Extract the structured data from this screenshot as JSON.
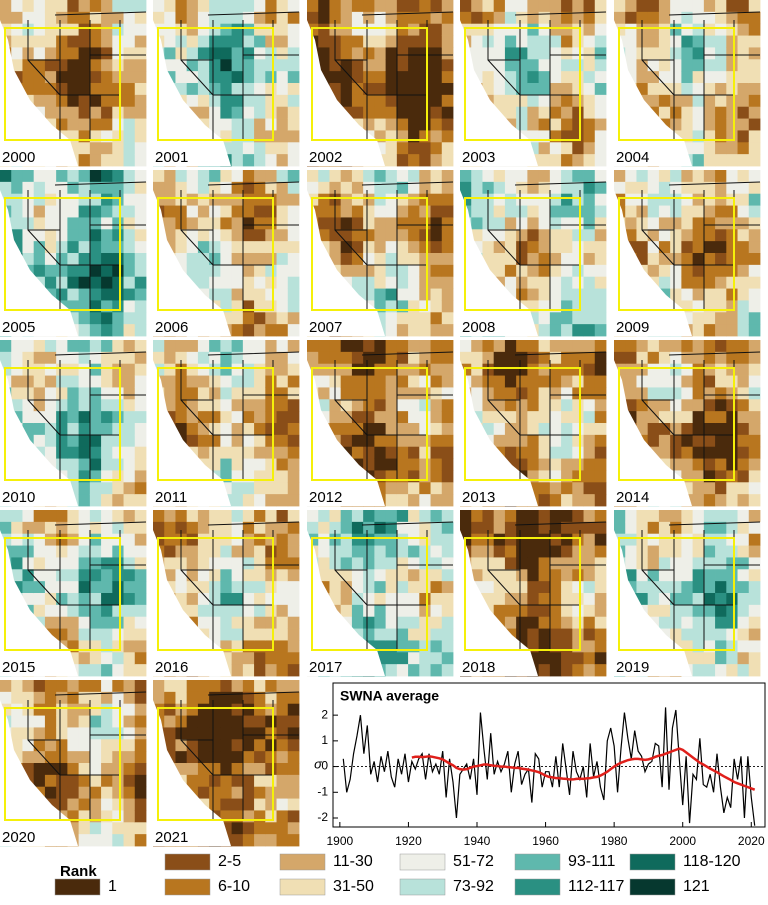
{
  "panels": [
    "2000",
    "2001",
    "2002",
    "2003",
    "2004",
    "2005",
    "2006",
    "2007",
    "2008",
    "2009",
    "2010",
    "2011",
    "2012",
    "2013",
    "2014",
    "2015",
    "2016",
    "2017",
    "2018",
    "2019",
    "2020",
    "2021"
  ],
  "legend": {
    "title": "Rank",
    "items": [
      {
        "label": "1",
        "color": "#4a2a0c"
      },
      {
        "label": "2-5",
        "color": "#8a4e18"
      },
      {
        "label": "6-10",
        "color": "#b8761f"
      },
      {
        "label": "11-30",
        "color": "#d4a76a"
      },
      {
        "label": "31-50",
        "color": "#f0dfb4"
      },
      {
        "label": "51-72",
        "color": "#eeefe8"
      },
      {
        "label": "73-92",
        "color": "#b8e2da"
      },
      {
        "label": "93-111",
        "color": "#5fb8ad"
      },
      {
        "label": "112-117",
        "color": "#2a9082"
      },
      {
        "label": "118-120",
        "color": "#0f6a5c"
      },
      {
        "label": "121",
        "color": "#06382f"
      }
    ]
  },
  "chart_data": {
    "type": "line",
    "title": "SWNA average",
    "y_label": "σ",
    "x": [
      1901,
      1902,
      1903,
      1904,
      1905,
      1906,
      1907,
      1908,
      1909,
      1910,
      1911,
      1912,
      1913,
      1914,
      1915,
      1916,
      1917,
      1918,
      1919,
      1920,
      1921,
      1922,
      1923,
      1924,
      1925,
      1926,
      1927,
      1928,
      1929,
      1930,
      1931,
      1932,
      1933,
      1934,
      1935,
      1936,
      1937,
      1938,
      1939,
      1940,
      1941,
      1942,
      1943,
      1944,
      1945,
      1946,
      1947,
      1948,
      1949,
      1950,
      1951,
      1952,
      1953,
      1954,
      1955,
      1956,
      1957,
      1958,
      1959,
      1960,
      1961,
      1962,
      1963,
      1964,
      1965,
      1966,
      1967,
      1968,
      1969,
      1970,
      1971,
      1972,
      1973,
      1974,
      1975,
      1976,
      1977,
      1978,
      1979,
      1980,
      1981,
      1982,
      1983,
      1984,
      1985,
      1986,
      1987,
      1988,
      1989,
      1990,
      1991,
      1992,
      1993,
      1994,
      1995,
      1996,
      1997,
      1998,
      1999,
      2000,
      2001,
      2002,
      2003,
      2004,
      2005,
      2006,
      2007,
      2008,
      2009,
      2010,
      2011,
      2012,
      2013,
      2014,
      2015,
      2016,
      2017,
      2018,
      2019,
      2020,
      2021
    ],
    "series": [
      {
        "color": "#000000",
        "values": [
          0.3,
          -1.0,
          -0.5,
          0.5,
          1.2,
          2.0,
          0.5,
          1.6,
          -0.3,
          0.2,
          -0.6,
          0.4,
          -0.2,
          0.6,
          -0.4,
          -0.8,
          0.3,
          -0.3,
          0.5,
          -0.6,
          0.2,
          -0.1,
          0.3,
          0.5,
          -0.5,
          0.5,
          -0.2,
          0.1,
          -0.3,
          0.6,
          -1.2,
          0.3,
          -0.6,
          -2.0,
          -0.3,
          -0.1,
          0.1,
          -0.5,
          0.3,
          -1.1,
          2.1,
          0.7,
          -0.5,
          1.3,
          -0.3,
          0.2,
          -0.2,
          0.1,
          0.6,
          -1.0,
          0.1,
          0.6,
          -0.7,
          -0.3,
          -0.1,
          -1.4,
          0.5,
          0.3,
          -0.8,
          -0.2,
          -0.2,
          -0.8,
          0.4,
          -0.8,
          0.9,
          -0.1,
          -1.1,
          0.6,
          -0.2,
          -0.5,
          0.0,
          -1.2,
          0.9,
          -0.4,
          0.2,
          -0.8,
          -1.3,
          1.0,
          1.5,
          0.8,
          -1.0,
          0.7,
          2.1,
          1.1,
          0.3,
          1.4,
          0.6,
          0.4,
          -0.2,
          0.1,
          0.2,
          0.9,
          0.8,
          -0.8,
          2.3,
          -0.9,
          1.5,
          2.2,
          0.3,
          -1.5,
          0.4,
          -2.2,
          -0.3,
          -0.5,
          1.1,
          -0.7,
          -0.8,
          -0.3,
          -1.0,
          0.5,
          -0.8,
          -1.8,
          -1.2,
          -1.6,
          0.3,
          -0.5,
          0.4,
          -2.0,
          0.4,
          -1.2,
          -2.3
        ]
      },
      {
        "color": "#e0201b",
        "values": [
          null,
          null,
          null,
          null,
          null,
          null,
          null,
          null,
          null,
          null,
          null,
          null,
          null,
          null,
          null,
          null,
          null,
          null,
          null,
          null,
          0.35,
          0.38,
          0.38,
          0.37,
          0.38,
          0.4,
          0.38,
          0.35,
          0.32,
          0.28,
          0.2,
          0.12,
          0.05,
          -0.05,
          -0.1,
          -0.12,
          -0.1,
          -0.05,
          0.0,
          0.02,
          0.05,
          0.08,
          0.08,
          0.05,
          0.03,
          0.02,
          0.0,
          0.0,
          -0.02,
          -0.03,
          -0.05,
          -0.05,
          -0.08,
          -0.1,
          -0.12,
          -0.15,
          -0.18,
          -0.22,
          -0.28,
          -0.35,
          -0.4,
          -0.42,
          -0.45,
          -0.45,
          -0.47,
          -0.48,
          -0.5,
          -0.5,
          -0.48,
          -0.47,
          -0.48,
          -0.46,
          -0.45,
          -0.42,
          -0.4,
          -0.35,
          -0.28,
          -0.2,
          -0.1,
          0.0,
          0.08,
          0.15,
          0.2,
          0.25,
          0.28,
          0.3,
          0.3,
          0.28,
          0.26,
          0.28,
          0.32,
          0.38,
          0.42,
          0.45,
          0.5,
          0.55,
          0.6,
          0.65,
          0.7,
          0.65,
          0.55,
          0.45,
          0.35,
          0.25,
          0.15,
          0.08,
          0.0,
          -0.08,
          -0.15,
          -0.22,
          -0.3,
          -0.38,
          -0.45,
          -0.52,
          -0.6,
          -0.65,
          -0.7,
          -0.75,
          -0.8,
          -0.85,
          -0.9
        ]
      }
    ],
    "baseline": 0,
    "xlim": [
      1898,
      2024
    ],
    "xticks": [
      1900,
      1920,
      1940,
      1960,
      1980,
      2000,
      2020
    ],
    "ylim": [
      -2.35,
      3.25
    ],
    "yticks": [
      -2,
      -1,
      0,
      1,
      2
    ]
  }
}
